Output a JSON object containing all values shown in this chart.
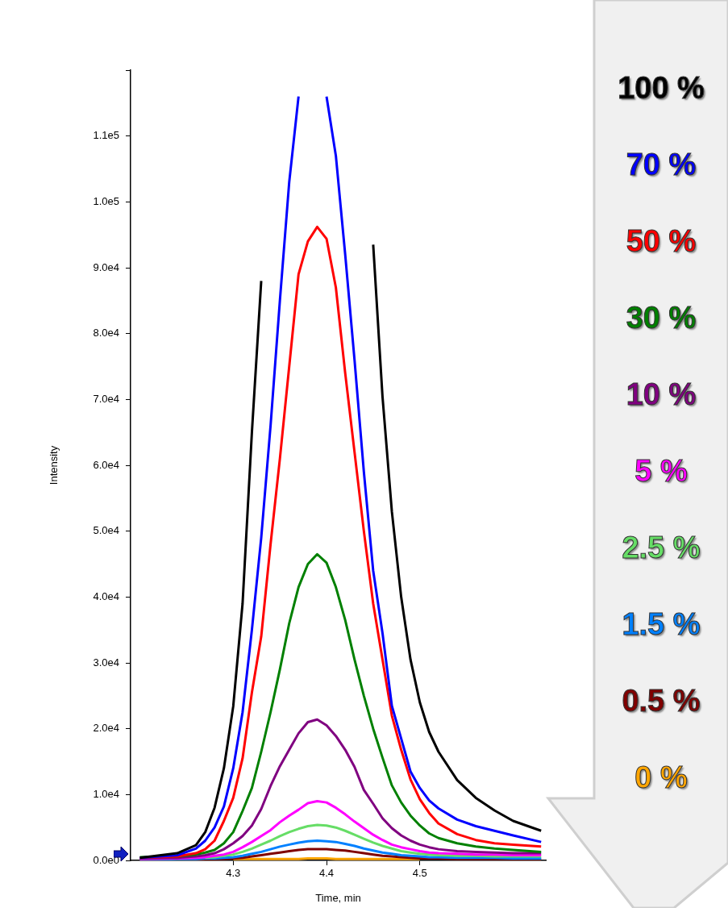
{
  "chart_data": {
    "type": "line",
    "xlabel": "Time, min",
    "ylabel": "Intensity",
    "x": [
      4.2,
      4.24,
      4.26,
      4.27,
      4.28,
      4.29,
      4.3,
      4.31,
      4.32,
      4.33,
      4.34,
      4.35,
      4.36,
      4.37,
      4.38,
      4.39,
      4.4,
      4.41,
      4.42,
      4.43,
      4.44,
      4.45,
      4.46,
      4.47,
      4.48,
      4.49,
      4.5,
      4.51,
      4.52,
      4.54,
      4.56,
      4.58,
      4.6,
      4.63
    ],
    "series": [
      {
        "name": "100 %",
        "color": "#000000",
        "values": [
          400,
          1100,
          2300,
          4300,
          8000,
          14000,
          23400,
          39000,
          65000,
          88000,
          null,
          null,
          null,
          null,
          null,
          null,
          null,
          null,
          null,
          null,
          null,
          93500,
          70400,
          53000,
          40000,
          30500,
          24000,
          19500,
          16500,
          12200,
          9500,
          7600,
          6000,
          4500
        ]
      },
      {
        "name": "70 %",
        "color": "#0000ff",
        "values": [
          400,
          800,
          1800,
          3000,
          5000,
          8200,
          14000,
          22500,
          35000,
          49000,
          66000,
          85000,
          103000,
          116000,
          null,
          null,
          116000,
          107000,
          92000,
          76000,
          59000,
          44000,
          34500,
          23500,
          18500,
          13500,
          11000,
          9100,
          7900,
          6200,
          5200,
          4500,
          3800,
          2800
        ]
      },
      {
        "name": "50 %",
        "color": "#ff0000",
        "values": [
          400,
          600,
          1100,
          1700,
          3000,
          6000,
          9500,
          15500,
          25500,
          34000,
          48000,
          61000,
          75000,
          89000,
          94000,
          96200,
          94400,
          87000,
          74000,
          62000,
          50000,
          39000,
          30500,
          22000,
          16800,
          12300,
          9300,
          7200,
          5600,
          4000,
          3100,
          2600,
          2400,
          2100
        ]
      },
      {
        "name": "30 %",
        "color": "#008000",
        "values": [
          500,
          600,
          900,
          1200,
          1600,
          2600,
          4300,
          7500,
          11000,
          16500,
          22500,
          29000,
          36000,
          41500,
          45000,
          46500,
          45200,
          41500,
          36500,
          30500,
          25000,
          20000,
          15600,
          11400,
          8800,
          6800,
          5300,
          4100,
          3400,
          2600,
          2100,
          1800,
          1600,
          1300
        ]
      },
      {
        "name": "10 %",
        "color": "#800080",
        "values": [
          300,
          400,
          600,
          800,
          1100,
          1700,
          2600,
          3700,
          5300,
          7800,
          11300,
          14300,
          16800,
          19300,
          21000,
          21400,
          20500,
          18900,
          16800,
          14200,
          10700,
          8600,
          6400,
          4900,
          3800,
          3000,
          2400,
          2000,
          1700,
          1400,
          1300,
          1200,
          1100,
          1100
        ]
      },
      {
        "name": "5 %",
        "color": "#ff00ff",
        "values": [
          200,
          300,
          400,
          500,
          700,
          900,
          1300,
          2000,
          2800,
          3700,
          4600,
          5800,
          6800,
          7700,
          8700,
          9000,
          8800,
          8000,
          7000,
          5900,
          4900,
          3900,
          3100,
          2400,
          2000,
          1700,
          1400,
          1200,
          1100,
          1000,
          900,
          900,
          800,
          800
        ]
      },
      {
        "name": "2.5 %",
        "color": "#66dd66",
        "values": [
          null,
          null,
          null,
          400,
          500,
          700,
          900,
          1300,
          1800,
          2400,
          3000,
          3700,
          4300,
          4800,
          5200,
          5400,
          5300,
          5000,
          4500,
          3900,
          3300,
          2700,
          2200,
          1800,
          1400,
          1200,
          1000,
          900,
          800,
          700,
          700,
          600,
          600,
          600
        ]
      },
      {
        "name": "1.5 %",
        "color": "#0080ff",
        "values": [
          100,
          200,
          200,
          300,
          300,
          400,
          500,
          700,
          1000,
          1300,
          1700,
          2100,
          2400,
          2700,
          2900,
          3000,
          2900,
          2800,
          2500,
          2200,
          1800,
          1500,
          1200,
          1000,
          800,
          700,
          600,
          500,
          500,
          400,
          400,
          400,
          300,
          300
        ]
      },
      {
        "name": "0.5 %",
        "color": "#800000",
        "values": [
          100,
          100,
          100,
          200,
          200,
          200,
          300,
          400,
          600,
          800,
          1000,
          1200,
          1400,
          1600,
          1700,
          1700,
          1700,
          1600,
          1500,
          1300,
          1100,
          900,
          700,
          600,
          500,
          400,
          300,
          300,
          300,
          200,
          200,
          200,
          200,
          200
        ]
      },
      {
        "name": "0 %",
        "color": "#ffa500",
        "values": [
          null,
          null,
          null,
          null,
          null,
          null,
          200,
          200,
          200,
          200,
          200,
          200,
          200,
          200,
          300,
          300,
          300,
          200,
          200,
          200,
          200,
          200,
          200,
          200,
          200,
          200,
          200,
          null,
          null,
          null,
          null,
          null,
          null,
          null
        ]
      }
    ],
    "xlim": [
      4.19,
      4.635
    ],
    "xticks": [
      4.3,
      4.4,
      4.5
    ],
    "ylim": [
      0,
      120000
    ],
    "yticks": [
      {
        "value": 0,
        "label": "0.0e0"
      },
      {
        "value": 10000,
        "label": "1.0e4"
      },
      {
        "value": 20000,
        "label": "2.0e4"
      },
      {
        "value": 30000,
        "label": "3.0e4"
      },
      {
        "value": 40000,
        "label": "4.0e4"
      },
      {
        "value": 50000,
        "label": "5.0e4"
      },
      {
        "value": 60000,
        "label": "6.0e4"
      },
      {
        "value": 70000,
        "label": "7.0e4"
      },
      {
        "value": 80000,
        "label": "8.0e4"
      },
      {
        "value": 90000,
        "label": "9.0e4"
      },
      {
        "value": 100000,
        "label": "1.0e5"
      },
      {
        "value": 110000,
        "label": "1.1e5"
      },
      {
        "value": 120000,
        "label": null
      }
    ],
    "legend": "right"
  }
}
